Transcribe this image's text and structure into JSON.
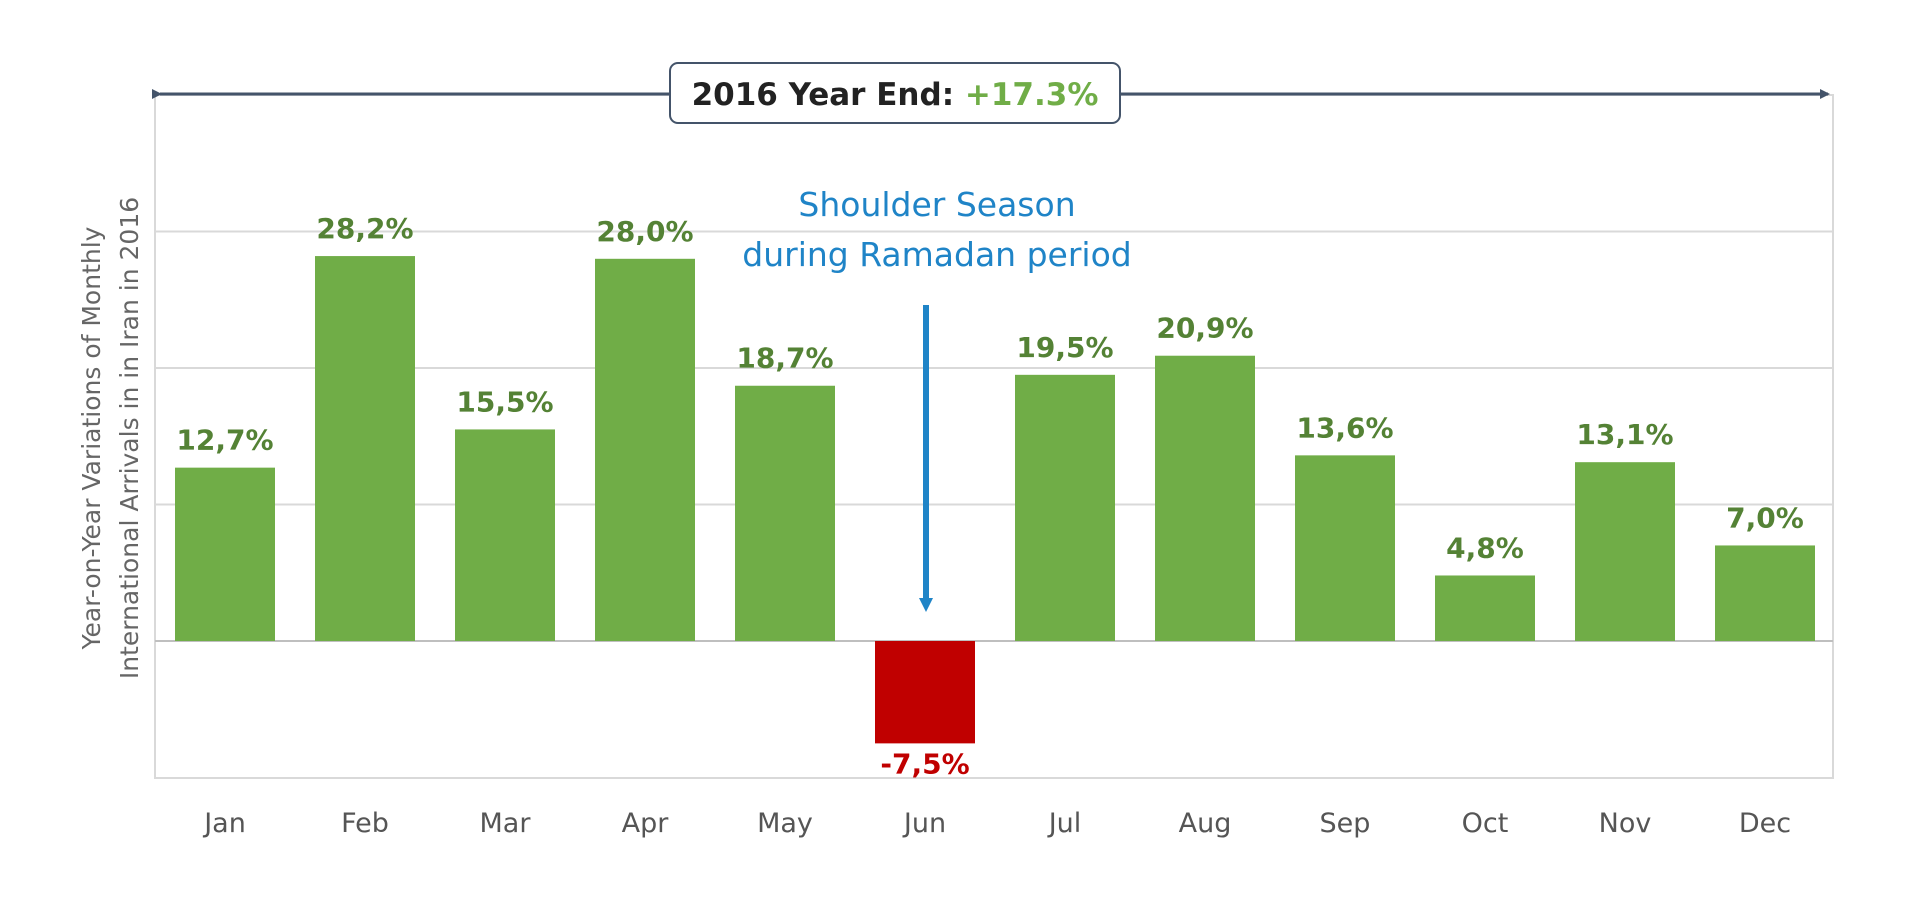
{
  "chart_data": {
    "type": "bar",
    "categories": [
      "Jan",
      "Feb",
      "Mar",
      "Apr",
      "May",
      "Jun",
      "Jul",
      "Aug",
      "Sep",
      "Oct",
      "Nov",
      "Dec"
    ],
    "values": [
      12.7,
      28.2,
      15.5,
      28.0,
      18.7,
      -7.5,
      19.5,
      20.9,
      13.6,
      4.8,
      13.1,
      7.0
    ],
    "labels": [
      "12,7%",
      "28,2%",
      "15,5%",
      "28,0%",
      "18,7%",
      "-7,5%",
      "19,5%",
      "20,9%",
      "13,6%",
      "4,8%",
      "13,1%",
      "7,0%"
    ],
    "ylabel_line1": "Year-on-Year Variations of Monthly",
    "ylabel_line2": "International Arrivals in in Iran in 2016",
    "ylim": [
      -10,
      40
    ],
    "gridlines": [
      0,
      10,
      20,
      30
    ],
    "annotation_line1": "Shoulder Season",
    "annotation_line2": "during Ramadan period",
    "year_end_label": "2016 Year End: ",
    "year_end_value": "+17.3%",
    "colors": {
      "positive": "#70ad47",
      "negative": "#c00000",
      "positive_label": "#548235",
      "negative_label": "#c00000",
      "annotation": "#1f84c7",
      "axis_arrow": "#44546a"
    }
  }
}
